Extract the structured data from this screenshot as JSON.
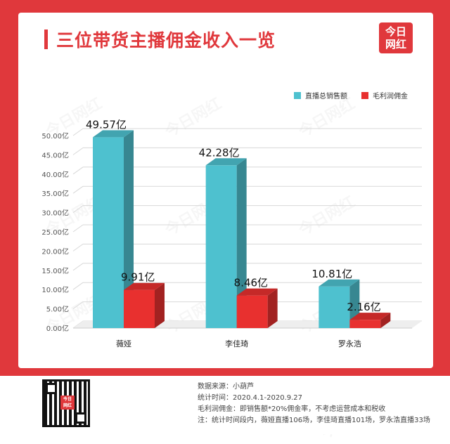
{
  "header": {
    "title": "三位带货主播佣金收入一览",
    "logo_line1": "今日",
    "logo_line2": "网红"
  },
  "watermark_text": "今日网红",
  "legend": [
    {
      "label": "直播总销售额",
      "color": "#4ec1cf"
    },
    {
      "label": "毛利润佣金",
      "color": "#e8302f"
    }
  ],
  "chart_data": {
    "type": "bar",
    "categories": [
      "薇娅",
      "李佳琦",
      "罗永浩"
    ],
    "series": [
      {
        "name": "直播总销售额",
        "values": [
          49.57,
          42.28,
          10.81
        ],
        "labels": [
          "49.57亿",
          "42.28亿",
          "10.81亿"
        ],
        "color": "#4ec1cf"
      },
      {
        "name": "毛利润佣金",
        "values": [
          9.91,
          8.46,
          2.16
        ],
        "labels": [
          "9.91亿",
          "8.46亿",
          "2.16亿"
        ],
        "color": "#e8302f"
      }
    ],
    "ylim": [
      0,
      50
    ],
    "yticks": [
      "0.00亿",
      "5.00亿",
      "10.00亿",
      "15.00亿",
      "20.00亿",
      "25.00亿",
      "30.00亿",
      "35.00亿",
      "40.00亿",
      "45.00亿",
      "50.00亿"
    ],
    "grid": true,
    "legend_position": "top-right",
    "style": "3d"
  },
  "footer": {
    "qr_badge_line1": "今日",
    "qr_badge_line2": "网红",
    "notes": [
      "数据来源：小葫芦",
      "统计时间：2020.4.1-2020.9.27",
      "毛利润佣金：即销售额*20%佣金率，不考虑运营成本和税收",
      "注：统计时间段内，薇娅直播106场，李佳琦直播101场，罗永浩直播33场"
    ]
  }
}
